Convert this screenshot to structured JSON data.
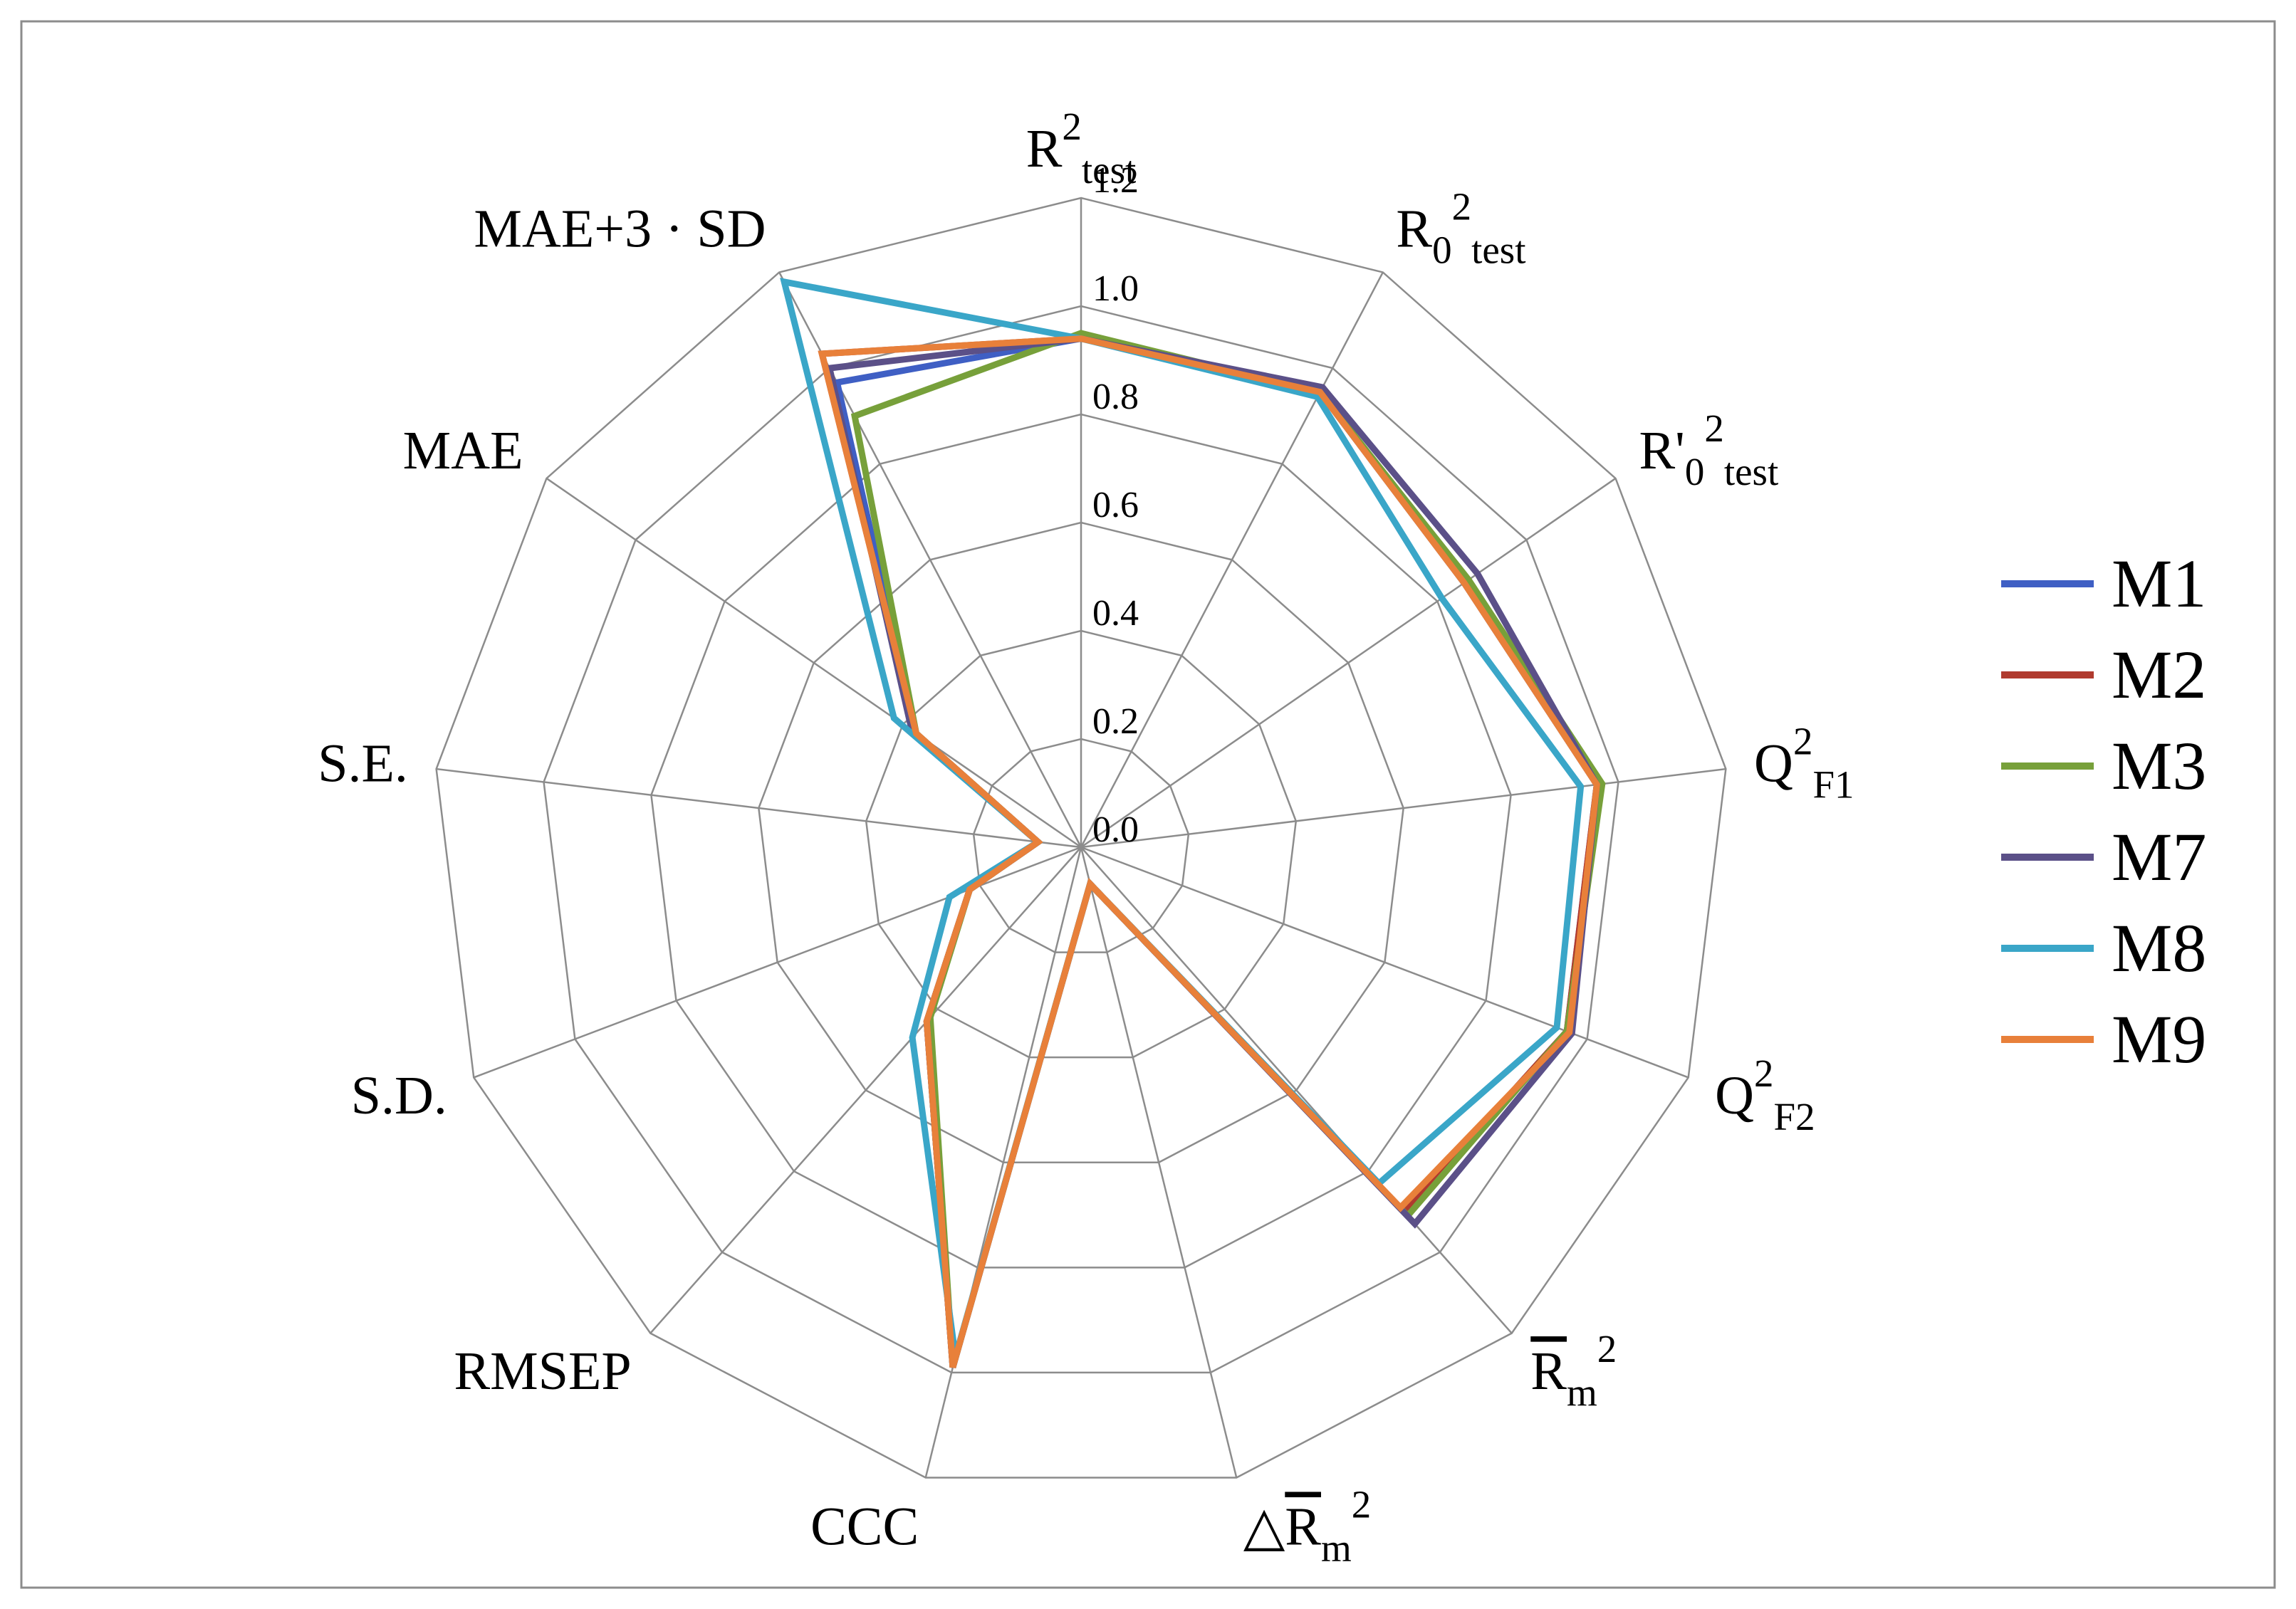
{
  "chart_data": {
    "type": "radar",
    "categories": [
      [
        {
          "text": "R"
        },
        {
          "sup": "2"
        },
        {
          "sub": "test"
        }
      ],
      [
        {
          "text": "R"
        },
        {
          "sub": "0"
        },
        {
          "sup": "2"
        },
        {
          "sub": "test"
        }
      ],
      [
        {
          "text": "R'"
        },
        {
          "sub": "0"
        },
        {
          "sup": "2"
        },
        {
          "sub": "test"
        }
      ],
      [
        {
          "text": "Q"
        },
        {
          "sup": "2"
        },
        {
          "sub": "F1"
        }
      ],
      [
        {
          "text": "Q"
        },
        {
          "sup": "2"
        },
        {
          "sub": "F2"
        }
      ],
      [
        {
          "over": "R"
        },
        {
          "sub": "m"
        },
        {
          "sup": "2"
        }
      ],
      [
        {
          "text": "△"
        },
        {
          "over": "R"
        },
        {
          "sub": "m"
        },
        {
          "sup": "2"
        }
      ],
      [
        {
          "text": "CCC"
        }
      ],
      [
        {
          "text": "RMSEP"
        }
      ],
      [
        {
          "text": "S.D."
        }
      ],
      [
        {
          "text": "S.E."
        }
      ],
      [
        {
          "text": "MAE"
        }
      ],
      [
        {
          "text": "MAE+3 · SD"
        }
      ]
    ],
    "series": [
      {
        "name": "M1",
        "color": "#3f5fc4",
        "values": [
          0.94,
          0.95,
          0.86,
          0.96,
          0.96,
          0.9,
          0.07,
          0.99,
          0.43,
          0.22,
          0.08,
          0.37,
          0.97
        ]
      },
      {
        "name": "M2",
        "color": "#b03a2e",
        "values": [
          0.94,
          0.95,
          0.86,
          0.96,
          0.96,
          0.9,
          0.07,
          0.99,
          0.43,
          0.22,
          0.08,
          0.37,
          1.03
        ]
      },
      {
        "name": "M3",
        "color": "#77a03a",
        "values": [
          0.95,
          0.95,
          0.87,
          0.97,
          0.96,
          0.91,
          0.07,
          0.99,
          0.42,
          0.22,
          0.08,
          0.37,
          0.9
        ]
      },
      {
        "name": "M7",
        "color": "#5b5088",
        "values": [
          0.94,
          0.96,
          0.89,
          0.96,
          0.97,
          0.93,
          0.07,
          0.99,
          0.43,
          0.22,
          0.08,
          0.38,
          1.0
        ]
      },
      {
        "name": "M8",
        "color": "#3aa6c8",
        "values": [
          0.94,
          0.94,
          0.81,
          0.93,
          0.94,
          0.83,
          0.07,
          0.97,
          0.47,
          0.26,
          0.08,
          0.42,
          1.18
        ]
      },
      {
        "name": "M9",
        "color": "#e8803a",
        "values": [
          0.94,
          0.95,
          0.86,
          0.96,
          0.965,
          0.89,
          0.07,
          0.99,
          0.43,
          0.22,
          0.08,
          0.37,
          1.03
        ]
      }
    ],
    "ylim": [
      0,
      1.2
    ],
    "yticks": [
      {
        "value": 0,
        "label": "0.0"
      },
      0.2,
      0.4,
      0.6,
      0.8,
      {
        "value": 1,
        "label": "1.0"
      },
      1.2
    ],
    "grid": true,
    "legend": "right"
  }
}
